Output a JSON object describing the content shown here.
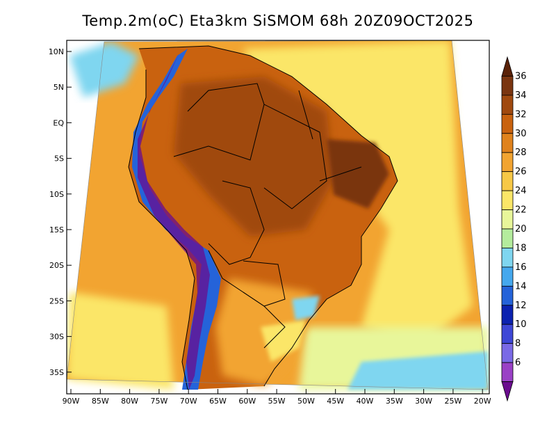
{
  "map": {
    "title": "Temp.2m(oC) Eta3km SiSMOM 68h 20Z09OCT2025",
    "lat_labels": [
      "10N",
      "5N",
      "EQ",
      "5S",
      "10S",
      "15S",
      "20S",
      "25S",
      "30S",
      "35S"
    ],
    "lon_labels": [
      "90W",
      "85W",
      "80W",
      "75W",
      "70W",
      "65W",
      "60W",
      "55W",
      "50W",
      "45W",
      "40W",
      "35W",
      "30W",
      "25W",
      "20W"
    ],
    "colorbar": {
      "labels": [
        "36",
        "34",
        "32",
        "30",
        "28",
        "26",
        "24",
        "22",
        "20",
        "18",
        "16",
        "14",
        "12",
        "10",
        "8",
        "6"
      ],
      "units": "oC",
      "colors": [
        "#5a2208",
        "#7a3510",
        "#a0490f",
        "#c9620f",
        "#e0821c",
        "#f2a431",
        "#f7c846",
        "#fbe668",
        "#e8f69a",
        "#b4ec9d",
        "#7fd6f0",
        "#45a8ee",
        "#2563d9",
        "#0c22b0",
        "#3e47d6",
        "#7a6ae6",
        "#9a41c6",
        "#6a0c8e"
      ],
      "scale": "6 to 36 oC, 2 degree intervals"
    },
    "field": {
      "ocean_pacific": "#f2a431",
      "ocean_atlantic_tropical": "#fbe668",
      "ocean_south_cold": "#7fd6f0",
      "amazon": "#c9620f",
      "northeast_hot": "#7a3510",
      "andes_cold": "#2563d9"
    }
  }
}
